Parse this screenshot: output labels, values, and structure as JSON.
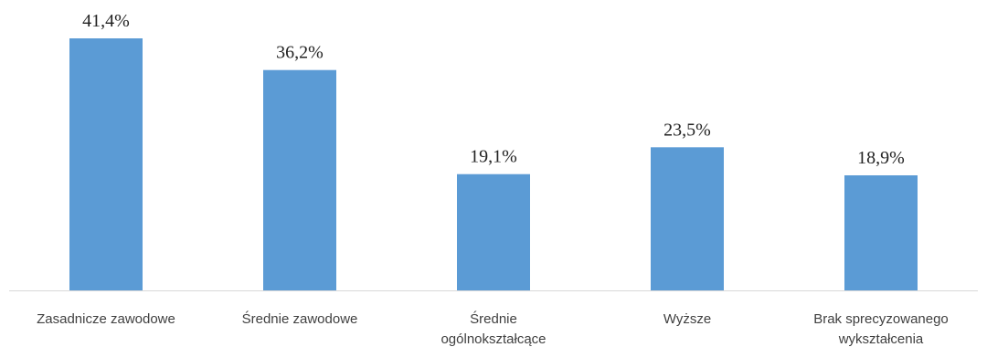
{
  "chart_data": {
    "type": "bar",
    "categories": [
      [
        "Zasadnicze zawodowe"
      ],
      [
        "Średnie zawodowe"
      ],
      [
        "Średnie",
        "ogólnokształcące"
      ],
      [
        "Wyższe"
      ],
      [
        "Brak sprecyzowanego",
        "wykształcenia"
      ]
    ],
    "values": [
      41.4,
      36.2,
      19.1,
      23.5,
      18.9
    ],
    "value_labels": [
      "41,4%",
      "36,2%",
      "19,1%",
      "23,5%",
      "18,9%"
    ],
    "ylim": [
      0,
      45
    ],
    "grid": false,
    "legend": "none",
    "bar_color": "#5b9bd5",
    "title": "",
    "xlabel": "",
    "ylabel": ""
  }
}
